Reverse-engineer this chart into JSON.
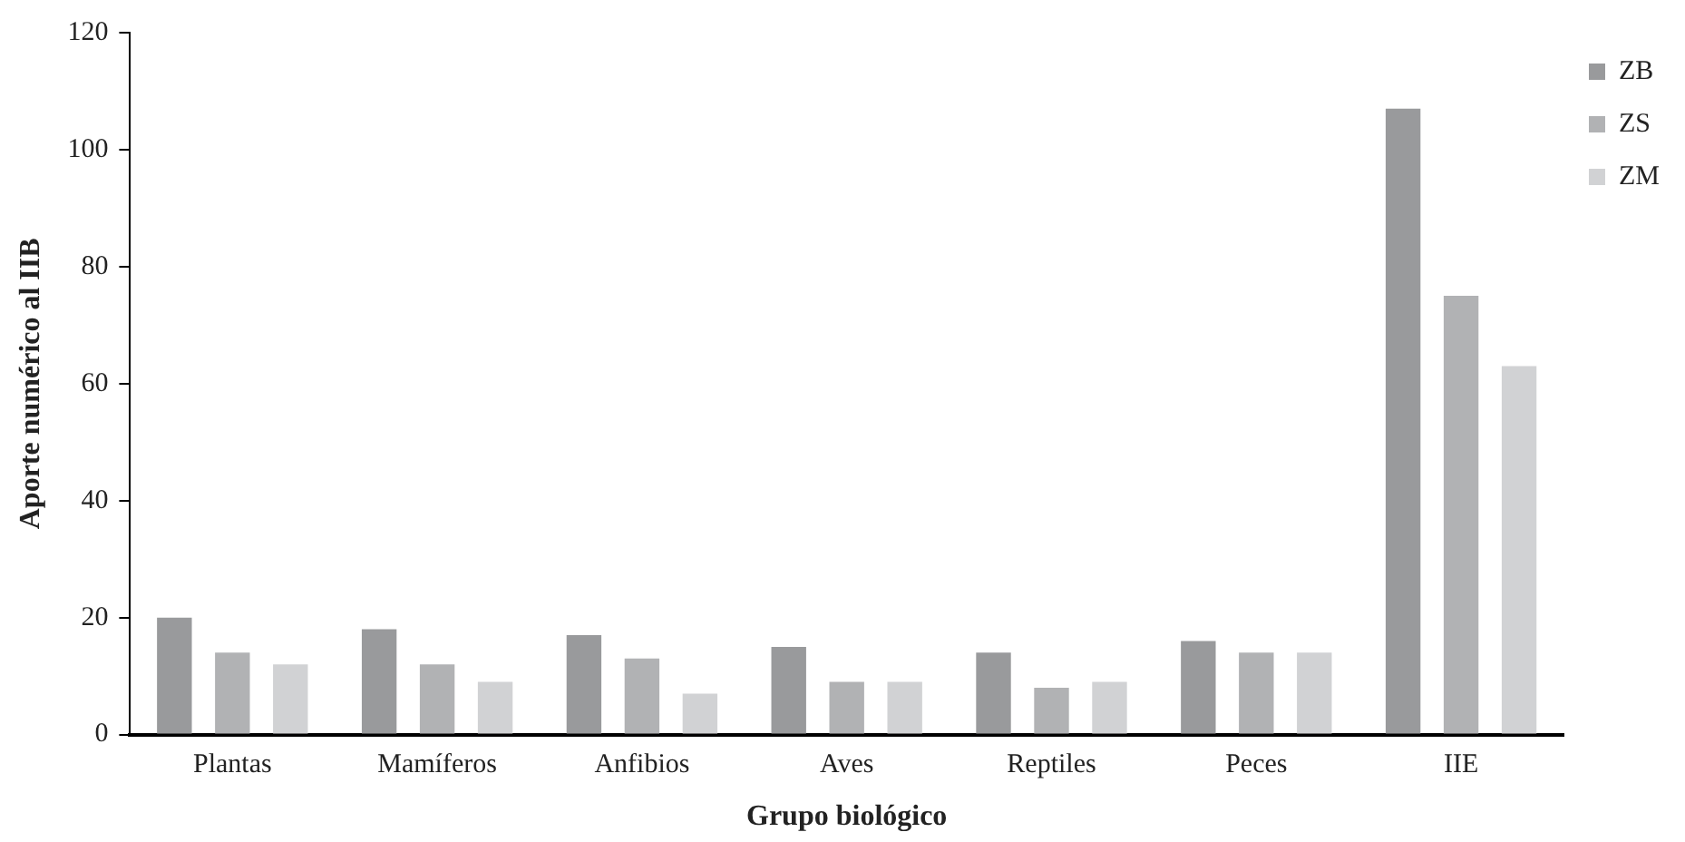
{
  "chart_data": {
    "type": "bar",
    "xlabel": "Grupo biológico",
    "ylabel": "Aporte numérico al IIB",
    "categories": [
      "Plantas",
      "Mamíferos",
      "Anfibios",
      "Aves",
      "Reptiles",
      "Peces",
      "IIE"
    ],
    "series": [
      {
        "name": "ZB",
        "color": "#999a9c",
        "values": [
          20,
          18,
          17,
          15,
          14,
          16,
          107
        ]
      },
      {
        "name": "ZS",
        "color": "#b1b2b4",
        "values": [
          14,
          12,
          13,
          9,
          8,
          14,
          75
        ]
      },
      {
        "name": "ZM",
        "color": "#d1d2d4",
        "values": [
          12,
          9,
          7,
          9,
          9,
          14,
          63
        ]
      }
    ],
    "ylim": [
      0,
      120
    ],
    "yticks": [
      0,
      20,
      40,
      60,
      80,
      100,
      120
    ],
    "grid": false,
    "legend": "top right"
  }
}
